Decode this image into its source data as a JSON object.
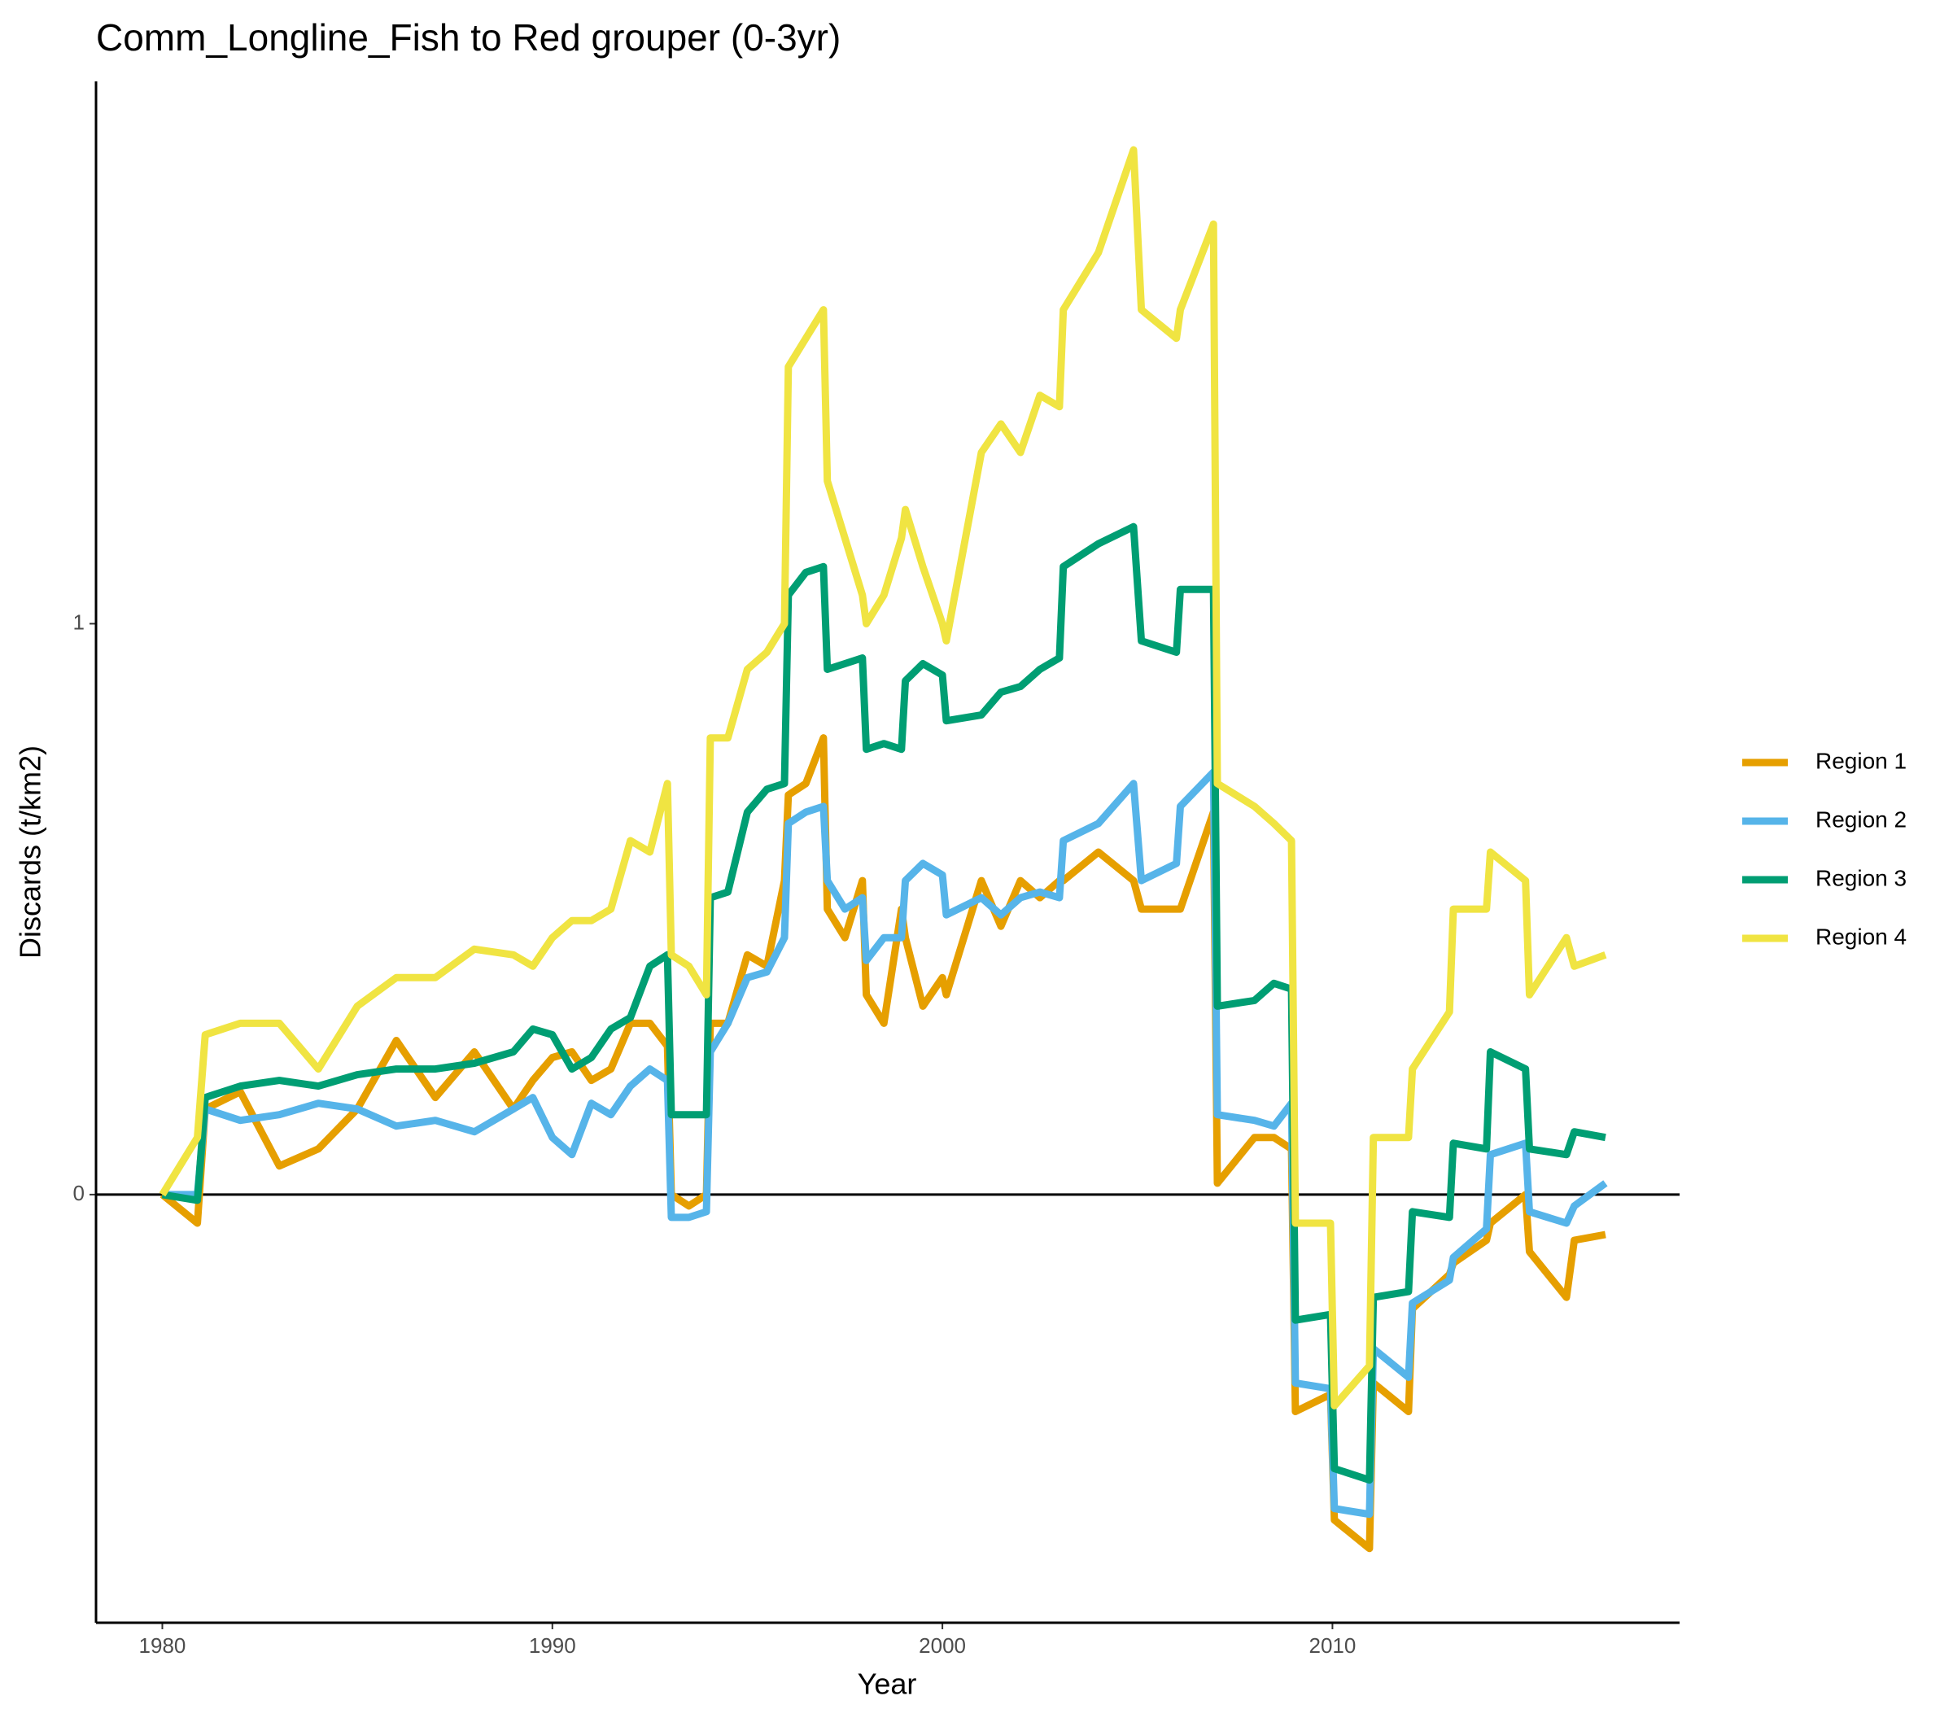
{
  "chart_data": {
    "type": "line",
    "title": "Comm_Longline_Fish to Red grouper (0-3yr)",
    "x_label": "Year",
    "y_label": "Discards (t/km2)",
    "x": [
      1980,
      1980.9,
      1981.1,
      1982,
      1983,
      1984,
      1985,
      1986,
      1987,
      1988,
      1989,
      1989.5,
      1990,
      1990.5,
      1991,
      1991.5,
      1992,
      1992.5,
      1992.95,
      1993.05,
      1993.5,
      1993.95,
      1994.05,
      1994.5,
      1995,
      1995.5,
      1995.95,
      1996.05,
      1996.5,
      1996.95,
      1997.05,
      1997.5,
      1997.95,
      1998.05,
      1998.5,
      1998.95,
      1999.05,
      1999.5,
      2000,
      2000.1,
      2001,
      2001.5,
      2002,
      2002.5,
      2003,
      2003.1,
      2004,
      2004.9,
      2005.1,
      2006,
      2006.1,
      2006.95,
      2007.05,
      2008,
      2008.5,
      2008.95,
      2009.05,
      2009.95,
      2010.05,
      2010.95,
      2011.05,
      2011.95,
      2012.05,
      2013,
      2013.1,
      2013.95,
      2014.05,
      2014.95,
      2015.05,
      2016,
      2016.2,
      2017
    ],
    "series": [
      {
        "name": "Region 1",
        "color": "#E69F00",
        "values": [
          0,
          -0.05,
          0.15,
          0.18,
          0.05,
          0.08,
          0.15,
          0.27,
          0.17,
          0.25,
          0.15,
          0.2,
          0.24,
          0.25,
          0.2,
          0.22,
          0.3,
          0.3,
          0.26,
          0.0,
          -0.02,
          0.0,
          0.3,
          0.3,
          0.42,
          0.4,
          0.55,
          0.7,
          0.72,
          0.8,
          0.5,
          0.45,
          0.55,
          0.35,
          0.3,
          0.5,
          0.45,
          0.33,
          0.38,
          0.35,
          0.55,
          0.47,
          0.55,
          0.52,
          0.55,
          0.55,
          0.6,
          0.55,
          0.5,
          0.5,
          0.5,
          0.67,
          0.02,
          0.1,
          0.1,
          0.08,
          -0.38,
          -0.35,
          -0.57,
          -0.62,
          -0.33,
          -0.38,
          -0.2,
          -0.14,
          -0.12,
          -0.08,
          -0.05,
          0.0,
          -0.1,
          -0.18,
          -0.08,
          -0.07
        ]
      },
      {
        "name": "Region 2",
        "color": "#56B4E9",
        "values": [
          0,
          0.0,
          0.15,
          0.13,
          0.14,
          0.16,
          0.15,
          0.12,
          0.13,
          0.11,
          0.15,
          0.17,
          0.1,
          0.07,
          0.16,
          0.14,
          0.19,
          0.22,
          0.2,
          -0.04,
          -0.04,
          -0.03,
          0.25,
          0.3,
          0.38,
          0.39,
          0.45,
          0.65,
          0.67,
          0.68,
          0.55,
          0.5,
          0.52,
          0.41,
          0.45,
          0.45,
          0.55,
          0.58,
          0.56,
          0.49,
          0.52,
          0.49,
          0.52,
          0.53,
          0.52,
          0.62,
          0.65,
          0.72,
          0.55,
          0.58,
          0.68,
          0.74,
          0.14,
          0.13,
          0.12,
          0.16,
          -0.33,
          -0.34,
          -0.55,
          -0.56,
          -0.27,
          -0.32,
          -0.19,
          -0.15,
          -0.11,
          -0.06,
          0.07,
          0.09,
          -0.03,
          -0.05,
          -0.02,
          0.02
        ]
      },
      {
        "name": "Region 3",
        "color": "#009E73",
        "values": [
          0,
          -0.01,
          0.17,
          0.19,
          0.2,
          0.19,
          0.21,
          0.22,
          0.22,
          0.23,
          0.25,
          0.29,
          0.28,
          0.22,
          0.24,
          0.29,
          0.31,
          0.4,
          0.42,
          0.14,
          0.14,
          0.14,
          0.52,
          0.53,
          0.67,
          0.71,
          0.72,
          1.05,
          1.09,
          1.1,
          0.92,
          0.93,
          0.94,
          0.78,
          0.79,
          0.78,
          0.9,
          0.93,
          0.91,
          0.83,
          0.84,
          0.88,
          0.89,
          0.92,
          0.94,
          1.1,
          1.14,
          1.17,
          0.97,
          0.95,
          1.06,
          1.06,
          0.33,
          0.34,
          0.37,
          0.36,
          -0.22,
          -0.21,
          -0.48,
          -0.5,
          -0.18,
          -0.17,
          -0.03,
          -0.04,
          0.09,
          0.08,
          0.25,
          0.22,
          0.08,
          0.07,
          0.11,
          0.1
        ]
      },
      {
        "name": "Region 4",
        "color": "#F0E442",
        "values": [
          0,
          0.1,
          0.28,
          0.3,
          0.3,
          0.22,
          0.33,
          0.38,
          0.38,
          0.43,
          0.42,
          0.4,
          0.45,
          0.48,
          0.48,
          0.5,
          0.62,
          0.6,
          0.72,
          0.42,
          0.4,
          0.35,
          0.8,
          0.8,
          0.92,
          0.95,
          1.0,
          1.45,
          1.5,
          1.55,
          1.25,
          1.15,
          1.05,
          1.0,
          1.05,
          1.15,
          1.2,
          1.1,
          1.0,
          0.97,
          1.3,
          1.35,
          1.3,
          1.4,
          1.38,
          1.55,
          1.65,
          1.83,
          1.55,
          1.5,
          1.55,
          1.7,
          0.72,
          0.68,
          0.65,
          0.62,
          -0.05,
          -0.05,
          -0.37,
          -0.3,
          0.1,
          0.1,
          0.22,
          0.32,
          0.5,
          0.5,
          0.6,
          0.55,
          0.35,
          0.45,
          0.4,
          0.42
        ]
      }
    ],
    "xlim": [
      1978.3,
      2018.9
    ],
    "xticks": [
      1980,
      1990,
      2000,
      2010
    ],
    "ylim": [
      -0.75,
      1.95
    ],
    "yticks": [
      0,
      1
    ],
    "reference_line": 0,
    "grid": false,
    "legend": "right"
  }
}
